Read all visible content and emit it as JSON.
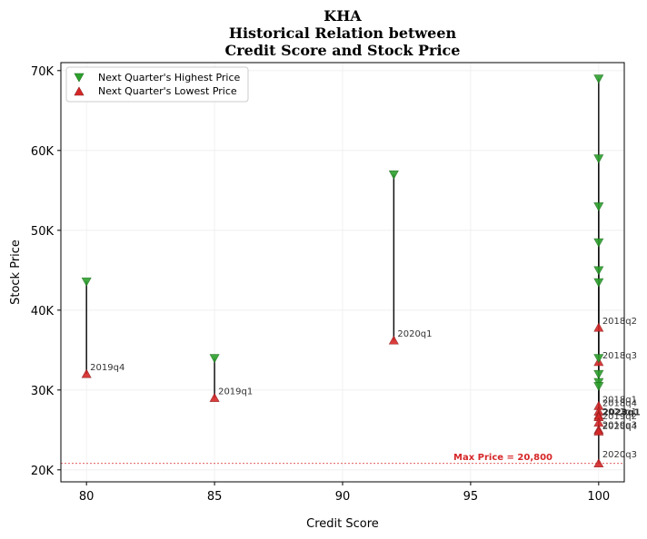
{
  "chart_data": {
    "type": "scatter",
    "title_lines": [
      "KHA",
      "Historical Relation between",
      "Credit Score and Stock Price"
    ],
    "xlabel": "Credit Score",
    "ylabel": "Stock Price",
    "xlim": [
      79,
      101
    ],
    "ylim": [
      18500,
      71000
    ],
    "xticks": [
      80,
      85,
      90,
      95,
      100
    ],
    "yticks": [
      20000,
      30000,
      40000,
      50000,
      60000,
      70000
    ],
    "ytick_labels": [
      "20K",
      "30K",
      "40K",
      "50K",
      "60K",
      "70K"
    ],
    "grid": true,
    "legend_position": "top-left",
    "series": [
      {
        "name": "Next Quarter's Highest Price",
        "marker": "triangle-down",
        "color": "#2ca02c"
      },
      {
        "name": "Next Quarter's Lowest Price",
        "marker": "triangle-up",
        "color": "#d62728"
      }
    ],
    "points": [
      {
        "label": "2019q4",
        "x": 80,
        "high": 43600,
        "low": 32000
      },
      {
        "label": "2019q1",
        "x": 85,
        "high": 34000,
        "low": 29000
      },
      {
        "label": "2020q1",
        "x": 92,
        "high": 57000,
        "low": 36200
      },
      {
        "label": "2018q2",
        "x": 100,
        "high": 69000,
        "low": 37800
      },
      {
        "label": "2018q3",
        "x": 100,
        "high": 59000,
        "low": 33500
      },
      {
        "label": "2018q1",
        "x": 100,
        "high": 53000,
        "low": 28000
      },
      {
        "label": "2018q4",
        "x": 100,
        "high": 48500,
        "low": 27300
      },
      {
        "label": "2021q1",
        "x": 100,
        "high": 45000,
        "low": 26800
      },
      {
        "label": "2023q1",
        "x": 100,
        "high": 43500,
        "low": 26600,
        "highlight": true
      },
      {
        "label": "2019q2",
        "x": 100,
        "high": 34000,
        "low": 25900
      },
      {
        "label": "2020q4",
        "x": 100,
        "high": 32000,
        "low": 25000
      },
      {
        "label": "2019q3",
        "x": 100,
        "high": 31000,
        "low": 24800
      },
      {
        "label": "2020q3",
        "x": 100,
        "high": 30500,
        "low": 20800
      }
    ],
    "reference_line": {
      "y": 20800,
      "label": "Max Price = 20,800",
      "color": "#d62728"
    }
  }
}
